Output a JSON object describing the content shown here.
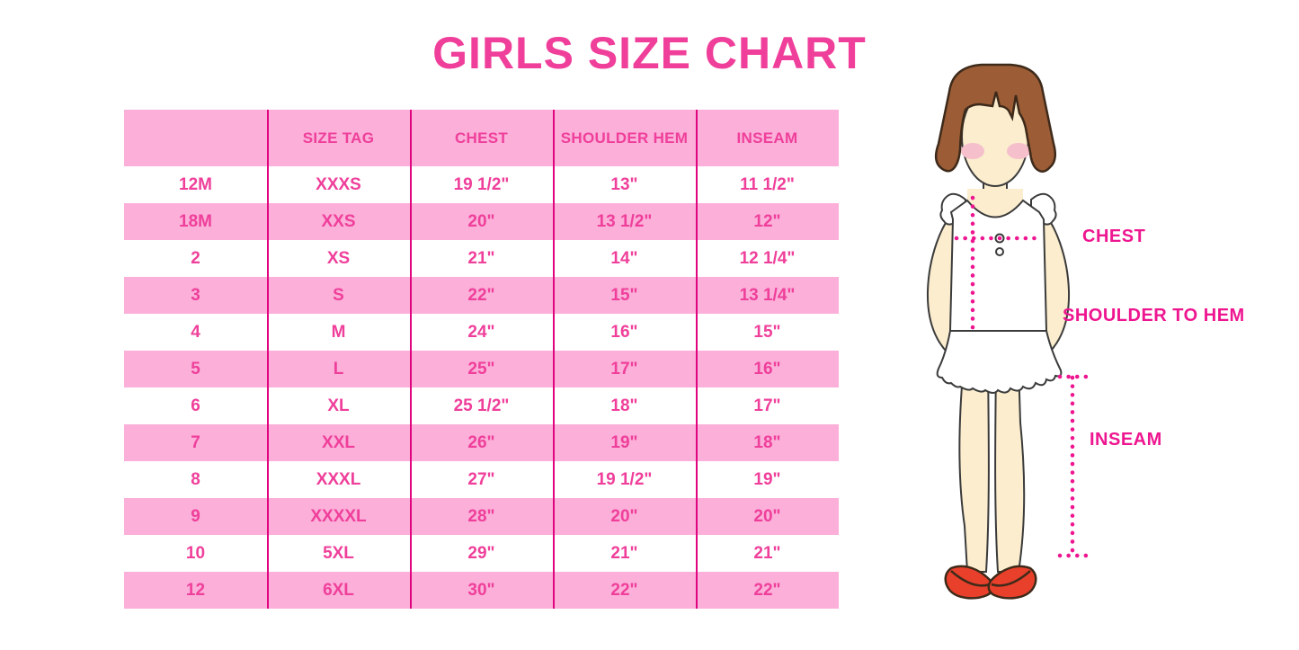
{
  "title": "GIRLS SIZE CHART",
  "table": {
    "columns": [
      "",
      "SIZE TAG",
      "CHEST",
      "SHOULDER HEM",
      "INSEAM"
    ],
    "rows": [
      [
        "12M",
        "XXXS",
        "19 1/2\"",
        "13\"",
        "11 1/2\""
      ],
      [
        "18M",
        "XXS",
        "20\"",
        "13 1/2\"",
        "12\""
      ],
      [
        "2",
        "XS",
        "21\"",
        "14\"",
        "12 1/4\""
      ],
      [
        "3",
        "S",
        "22\"",
        "15\"",
        "13 1/4\""
      ],
      [
        "4",
        "M",
        "24\"",
        "16\"",
        "15\""
      ],
      [
        "5",
        "L",
        "25\"",
        "17\"",
        "16\""
      ],
      [
        "6",
        "XL",
        "25 1/2\"",
        "18\"",
        "17\""
      ],
      [
        "7",
        "XXL",
        "26\"",
        "19\"",
        "18\""
      ],
      [
        "8",
        "XXXL",
        "27\"",
        "19 1/2\"",
        "19\""
      ],
      [
        "9",
        "XXXXL",
        "28\"",
        "20\"",
        "20\""
      ],
      [
        "10",
        "5XL",
        "29\"",
        "21\"",
        "21\""
      ],
      [
        "12",
        "6XL",
        "30\"",
        "22\"",
        "22\""
      ]
    ]
  },
  "figure": {
    "labels": {
      "chest": "CHEST",
      "shoulder_to_hem": "SHOULDER TO HEM",
      "inseam": "INSEAM"
    }
  },
  "colors": {
    "title_pink": "#EF3F9A",
    "row_pink": "#FBAFD9",
    "table_line_magenta": "#E0047F",
    "label_magenta": "#EE1690",
    "hair_brown": "#9C5D36",
    "skin": "#FBEDCE",
    "blush": "#F5C0CC",
    "shoe_red": "#E8402B"
  }
}
